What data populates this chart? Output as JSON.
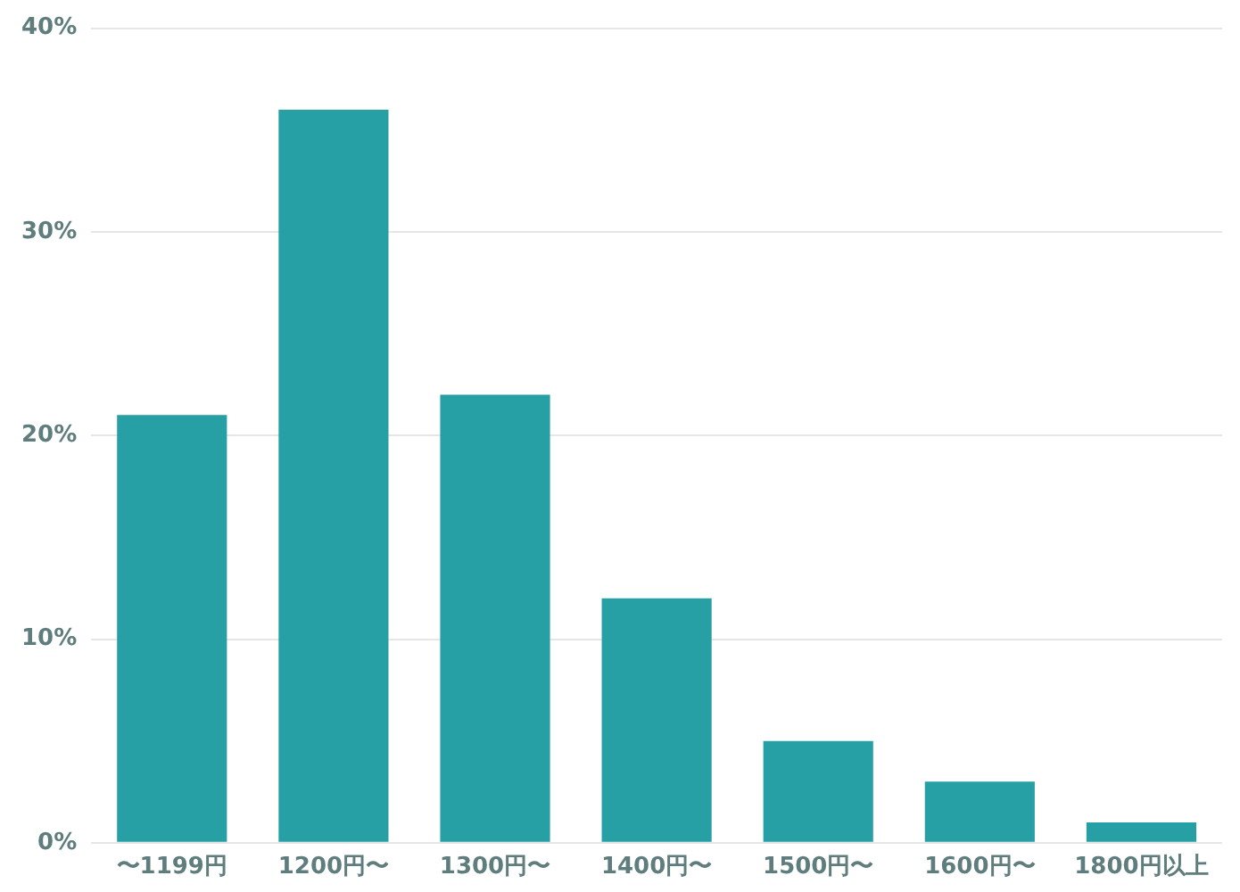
{
  "chart_data": {
    "type": "bar",
    "categories": [
      "〜1199円",
      "1200円〜",
      "1300円〜",
      "1400円〜",
      "1500円〜",
      "1600円〜",
      "1800円以上"
    ],
    "values": [
      21,
      36,
      22,
      12,
      5,
      3,
      1
    ],
    "color": "#26a0a4",
    "ylim": [
      0,
      40
    ],
    "yticks": [
      {
        "value": 0,
        "label": "0%"
      },
      {
        "value": 10,
        "label": "10%"
      },
      {
        "value": 20,
        "label": "20%"
      },
      {
        "value": 30,
        "label": "30%"
      },
      {
        "value": 40,
        "label": "40%"
      }
    ],
    "grid": "y"
  }
}
